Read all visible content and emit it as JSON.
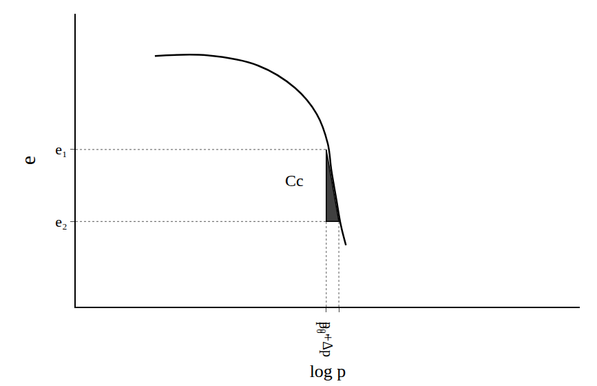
{
  "chart_data": {
    "type": "line",
    "x_label": "log p",
    "y_label": "e",
    "x": [
      1.57,
      2.61,
      3.62,
      4.35,
      4.78,
      5.0,
      5.07,
      5.17,
      5.26,
      5.36
    ],
    "values": [
      8.56,
      8.58,
      8.23,
      7.47,
      6.58,
      5.57,
      4.68,
      3.67,
      2.78,
      2.1
    ],
    "color": "#000000",
    "xlim": [
      0,
      10
    ],
    "ylim": [
      0,
      10
    ],
    "xticks": [
      {
        "value": 4.97,
        "label": "p₀'"
      },
      {
        "value": 5.22,
        "label": "p₀+Δp"
      }
    ],
    "yticks": [
      {
        "value": 5.37,
        "label": "e₁"
      },
      {
        "value": 2.91,
        "label": "e₂"
      }
    ],
    "annotations": [
      {
        "text": "Cc",
        "x": 4.55,
        "y": 4.3
      }
    ],
    "grid": false
  }
}
